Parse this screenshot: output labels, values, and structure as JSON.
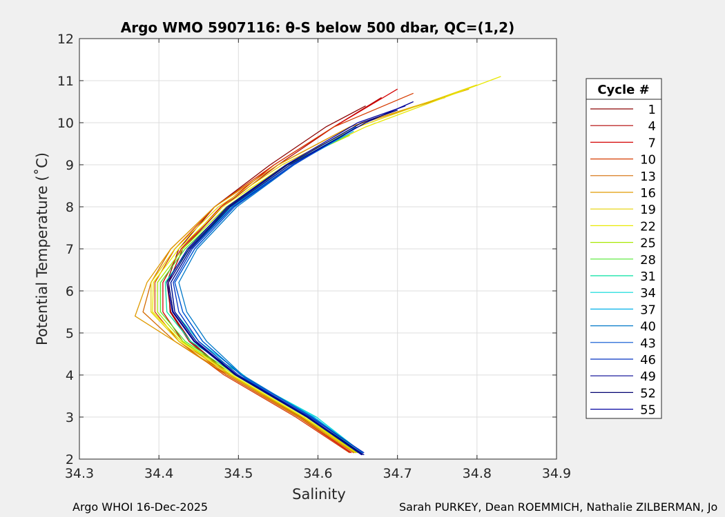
{
  "chart_data": {
    "type": "line",
    "title": "Argo WMO 5907116: θ-S below 500 dbar,  QC=(1,2)",
    "xlabel": "Salinity",
    "ylabel": "Potential Temperature (˚C)",
    "xlim": [
      34.3,
      34.9
    ],
    "ylim": [
      2,
      12
    ],
    "xticks": [
      "34.3",
      "34.4",
      "34.5",
      "34.6",
      "34.7",
      "34.8",
      "34.9"
    ],
    "yticks": [
      "2",
      "3",
      "4",
      "5",
      "6",
      "7",
      "8",
      "9",
      "10",
      "11",
      "12"
    ],
    "grid": true,
    "legend": {
      "title": "Cycle #",
      "placement": "right",
      "entries": [
        {
          "name": "1",
          "color": "#8b0000"
        },
        {
          "name": "4",
          "color": "#b00000"
        },
        {
          "name": "7",
          "color": "#d40000"
        },
        {
          "name": "10",
          "color": "#d63b00"
        },
        {
          "name": "13",
          "color": "#d46a00"
        },
        {
          "name": "16",
          "color": "#e09a00"
        },
        {
          "name": "19",
          "color": "#e6d000"
        },
        {
          "name": "22",
          "color": "#e8e800"
        },
        {
          "name": "25",
          "color": "#a8e800"
        },
        {
          "name": "28",
          "color": "#50e830"
        },
        {
          "name": "31",
          "color": "#00e0a0"
        },
        {
          "name": "34",
          "color": "#00d8d8"
        },
        {
          "name": "37",
          "color": "#00b0e8"
        },
        {
          "name": "40",
          "color": "#0078c8"
        },
        {
          "name": "43",
          "color": "#0050d0"
        },
        {
          "name": "46",
          "color": "#0030c0"
        },
        {
          "name": "49",
          "color": "#000090"
        },
        {
          "name": "52",
          "color": "#000070"
        },
        {
          "name": "55",
          "color": "#0000a0"
        }
      ]
    },
    "series": [
      {
        "cycle": "1",
        "color": "#8b0000",
        "x": [
          34.648,
          34.58,
          34.49,
          34.44,
          34.415,
          34.41,
          34.425,
          34.47,
          34.54,
          34.61,
          34.66
        ],
        "y": [
          2.15,
          3.0,
          4.0,
          4.8,
          5.5,
          6.2,
          7.0,
          8.0,
          9.0,
          9.9,
          10.4
        ]
      },
      {
        "cycle": "4",
        "color": "#b00000",
        "x": [
          34.645,
          34.578,
          34.488,
          34.438,
          34.414,
          34.412,
          34.43,
          34.48,
          34.55,
          34.62,
          34.68
        ],
        "y": [
          2.15,
          3.0,
          4.0,
          4.8,
          5.5,
          6.2,
          7.0,
          8.0,
          9.0,
          9.9,
          10.6
        ]
      },
      {
        "cycle": "7",
        "color": "#d40000",
        "x": [
          34.642,
          34.575,
          34.485,
          34.43,
          34.405,
          34.405,
          34.428,
          34.478,
          34.545,
          34.62,
          34.7
        ],
        "y": [
          2.15,
          3.0,
          4.0,
          4.8,
          5.5,
          6.2,
          7.0,
          8.0,
          9.0,
          9.9,
          10.8
        ]
      },
      {
        "cycle": "10",
        "color": "#d63b00",
        "x": [
          34.64,
          34.572,
          34.482,
          34.425,
          34.395,
          34.395,
          34.42,
          34.47,
          34.545,
          34.62,
          34.72
        ],
        "y": [
          2.15,
          3.0,
          4.0,
          4.8,
          5.5,
          6.2,
          7.0,
          8.0,
          9.0,
          9.9,
          10.7
        ]
      },
      {
        "cycle": "13",
        "color": "#d46a00",
        "x": [
          34.645,
          34.575,
          34.485,
          34.42,
          34.38,
          34.39,
          34.415,
          34.47,
          34.55,
          34.64,
          34.76
        ],
        "y": [
          2.15,
          3.0,
          4.0,
          4.8,
          5.5,
          6.2,
          7.0,
          8.0,
          9.0,
          9.9,
          10.6
        ]
      },
      {
        "cycle": "16",
        "color": "#e09a00",
        "x": [
          34.646,
          34.577,
          34.488,
          34.42,
          34.37,
          34.385,
          34.415,
          34.47,
          34.55,
          34.64,
          34.79
        ],
        "y": [
          2.15,
          3.0,
          4.0,
          4.8,
          5.4,
          6.2,
          7.0,
          8.0,
          9.0,
          9.9,
          10.8
        ]
      },
      {
        "cycle": "19",
        "color": "#e6d000",
        "x": [
          34.648,
          34.58,
          34.49,
          34.425,
          34.39,
          34.39,
          34.42,
          34.475,
          34.555,
          34.65,
          34.8
        ],
        "y": [
          2.15,
          3.0,
          4.0,
          4.8,
          5.5,
          6.2,
          7.0,
          8.0,
          9.0,
          9.9,
          10.9
        ]
      },
      {
        "cycle": "22",
        "color": "#e8e800",
        "x": [
          34.65,
          34.582,
          34.492,
          34.428,
          34.392,
          34.393,
          34.425,
          34.48,
          34.56,
          34.66,
          34.83
        ],
        "y": [
          2.15,
          3.0,
          4.0,
          4.8,
          5.5,
          6.2,
          7.0,
          8.0,
          9.0,
          9.9,
          11.1
        ]
      },
      {
        "cycle": "25",
        "color": "#a8e800",
        "x": [
          34.65,
          34.585,
          34.495,
          34.43,
          34.398,
          34.398,
          34.43,
          34.485,
          34.56,
          34.64
        ],
        "y": [
          2.15,
          3.0,
          4.0,
          4.8,
          5.5,
          6.2,
          7.0,
          8.0,
          9.0,
          9.7
        ]
      },
      {
        "cycle": "28",
        "color": "#50e830",
        "x": [
          34.652,
          34.588,
          34.498,
          34.433,
          34.402,
          34.402,
          34.433,
          34.488,
          34.562,
          34.635
        ],
        "y": [
          2.15,
          3.0,
          4.0,
          4.8,
          5.5,
          6.2,
          7.0,
          8.0,
          9.0,
          9.7
        ]
      },
      {
        "cycle": "31",
        "color": "#00e0a0",
        "x": [
          34.654,
          34.592,
          34.505,
          34.44,
          34.41,
          34.408,
          34.438,
          34.49,
          34.565,
          34.64
        ],
        "y": [
          2.15,
          3.0,
          4.0,
          4.8,
          5.5,
          6.2,
          7.0,
          8.0,
          9.0,
          9.8
        ]
      },
      {
        "cycle": "34",
        "color": "#00d8d8",
        "x": [
          34.656,
          34.598,
          34.52,
          34.45,
          34.42,
          34.415,
          34.44,
          34.492,
          34.565,
          34.64
        ],
        "y": [
          2.15,
          3.0,
          3.8,
          4.8,
          5.5,
          6.2,
          7.0,
          8.0,
          9.0,
          9.8
        ]
      },
      {
        "cycle": "37",
        "color": "#00b0e8",
        "x": [
          34.656,
          34.595,
          34.51,
          34.455,
          34.43,
          34.42,
          34.445,
          34.495,
          34.568,
          34.645
        ],
        "y": [
          2.15,
          3.0,
          3.9,
          4.8,
          5.5,
          6.2,
          7.0,
          8.0,
          9.0,
          9.8
        ]
      },
      {
        "cycle": "40",
        "color": "#0078c8",
        "x": [
          34.657,
          34.593,
          34.505,
          34.46,
          34.435,
          34.425,
          34.448,
          34.498,
          34.57,
          34.648
        ],
        "y": [
          2.15,
          3.0,
          4.0,
          4.8,
          5.5,
          6.2,
          7.0,
          8.0,
          9.0,
          9.9
        ]
      },
      {
        "cycle": "43",
        "color": "#0050d0",
        "x": [
          34.657,
          34.592,
          34.503,
          34.455,
          34.43,
          34.42,
          34.445,
          34.495,
          34.57,
          34.65
        ],
        "y": [
          2.15,
          3.0,
          4.0,
          4.8,
          5.5,
          6.2,
          7.0,
          8.0,
          9.0,
          9.9
        ]
      },
      {
        "cycle": "46",
        "color": "#0030c0",
        "x": [
          34.658,
          34.59,
          34.5,
          34.45,
          34.425,
          34.418,
          34.442,
          34.493,
          34.568,
          34.65
        ],
        "y": [
          2.15,
          3.0,
          4.0,
          4.8,
          5.5,
          6.2,
          7.0,
          8.0,
          9.0,
          9.9
        ]
      },
      {
        "cycle": "49",
        "color": "#000090",
        "x": [
          34.658,
          34.588,
          34.498,
          34.447,
          34.42,
          34.415,
          34.44,
          34.49,
          34.565,
          34.66,
          34.72
        ],
        "y": [
          2.1,
          3.0,
          4.0,
          4.8,
          5.5,
          6.2,
          7.0,
          8.0,
          9.0,
          10.0,
          10.5
        ]
      },
      {
        "cycle": "52",
        "color": "#000070",
        "x": [
          34.656,
          34.587,
          34.497,
          34.445,
          34.418,
          34.412,
          34.438,
          34.488,
          34.562,
          34.655,
          34.7
        ],
        "y": [
          2.1,
          3.0,
          4.0,
          4.8,
          5.5,
          6.2,
          7.0,
          8.0,
          9.0,
          10.0,
          10.3
        ]
      },
      {
        "cycle": "55",
        "color": "#0000a0",
        "x": [
          34.655,
          34.586,
          34.496,
          34.444,
          34.417,
          34.41,
          34.436,
          34.486,
          34.56,
          34.65,
          34.71
        ],
        "y": [
          2.1,
          3.0,
          4.0,
          4.8,
          5.5,
          6.2,
          7.0,
          8.0,
          9.0,
          10.0,
          10.4
        ]
      }
    ]
  },
  "footer": {
    "left": "Argo WHOI 16-Dec-2025",
    "right": "Sarah PURKEY, Dean ROEMMICH, Nathalie ZILBERMAN, Jo"
  }
}
